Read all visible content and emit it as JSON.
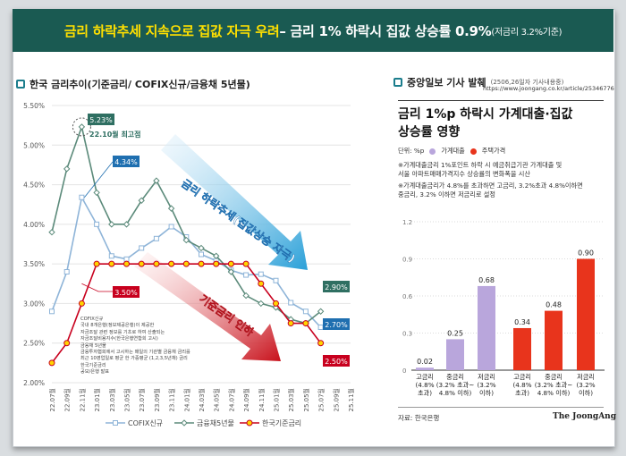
{
  "banner": {
    "part1": "금리 하락추세 지속으로 집값 자극 우려",
    "part2": " – 금리 1% 하락시 집값 상승률 0.9%",
    "part3": "(저금리 3.2%기준)"
  },
  "left": {
    "heading": "한국 금리추이(기준금리/ COFIX신규/금융채 5년물)",
    "source_note": [
      "COFIX신규",
      "국내 8개은행(정보제공은행)이 제공한",
      "자금조달 관련 정보를 기초로 하여 산출되는",
      "자금조달비용지수(한국은행연합회 고시)",
      "금융채 5년물",
      "금융투자협회에서 고시하는 매일의 기관별 금융채 금리를",
      "최근 10영업일로 평균 한 가중평균 (1,2,3,5년채) 금리",
      "한국기준금리",
      "공모/은행 발표"
    ]
  },
  "right": {
    "heading": "중앙일보 기사 발췌",
    "heading_sub": "(2506,26일자 기사내용중)",
    "url": "https://www.joongang.co.kr/article/25346776",
    "title_line1": "금리 1%p 하락시 가계대출·집값",
    "title_line2": "상승률 영향",
    "unit": "단위: %p",
    "legend_loan": "가계대출",
    "legend_house": "주택가격",
    "note1_line1": "※가계대출금리 1%포인트 하락 시 예금취급기관 가계대출 및",
    "note1_line2": "  서울 아파트매매가격지수 상승률의 변화폭을 시산",
    "note2_line1": "※가계대출금리가 4.8%를 초과하면 고금리, 3.2%초과 4.8%이하면",
    "note2_line2": "  중금리, 3.2% 이하면 저금리로 설정",
    "source": "자료: 한국은행",
    "brand": "The JoongAng"
  },
  "colors": {
    "banner_bg": "#1a5a52",
    "banner_highlight": "#ffe000",
    "cofix": "#8eb4d8",
    "bond": "#5b8a7a",
    "base": "#c8001e",
    "base_marker": "#ffd400",
    "loan": "#b9a6dc",
    "house": "#e8341c"
  },
  "chart_data": [
    {
      "type": "line",
      "title": "한국 금리추이(기준금리/ COFIX신규/금융채 5년물)",
      "x": [
        "22.07월",
        "22.09월",
        "22.11월",
        "23.01월",
        "23.03월",
        "23.05월",
        "23.07월",
        "23.09월",
        "23.11월",
        "24.01월",
        "24.03월",
        "24.05월",
        "24.07월",
        "24.09월",
        "24.11월",
        "25.01월",
        "25.03월",
        "25.05월",
        "25.07월",
        "25.09월",
        "25.11월"
      ],
      "ylim": [
        2.0,
        5.5
      ],
      "yticks": [
        "2.00%",
        "2.50%",
        "3.00%",
        "3.50%",
        "4.00%",
        "4.50%",
        "5.00%",
        "5.50%"
      ],
      "legend": [
        "COFIX신규",
        "금융채5년물",
        "한국기준금리"
      ],
      "series": [
        {
          "name": "COFIX신규",
          "values": [
            2.9,
            3.4,
            4.34,
            4.0,
            3.6,
            3.56,
            3.7,
            3.82,
            3.97,
            3.84,
            3.62,
            3.54,
            3.42,
            3.36,
            3.37,
            3.29,
            3.01,
            2.9,
            2.7,
            null,
            null
          ]
        },
        {
          "name": "금융채5년물",
          "values": [
            3.9,
            4.7,
            5.23,
            4.4,
            4.0,
            4.0,
            4.3,
            4.55,
            4.2,
            3.8,
            3.7,
            3.6,
            3.4,
            3.1,
            3.0,
            2.95,
            2.8,
            2.75,
            2.9,
            null,
            null
          ]
        },
        {
          "name": "한국기준금리",
          "values": [
            2.25,
            2.5,
            3.0,
            3.5,
            3.5,
            3.5,
            3.5,
            3.5,
            3.5,
            3.5,
            3.5,
            3.5,
            3.5,
            3.5,
            3.25,
            3.0,
            2.75,
            2.75,
            2.5,
            null,
            null
          ]
        }
      ],
      "annotations": [
        {
          "text": "5.23%",
          "note": "22.10월 최고점"
        },
        {
          "text": "4.34%"
        },
        {
          "text": "3.50%"
        },
        {
          "text": "2.90%"
        },
        {
          "text": "2.70%"
        },
        {
          "text": "2.50%"
        },
        {
          "text": "금리 하락추세(집값상승 자극)"
        },
        {
          "text": "기준금리 인하"
        }
      ]
    },
    {
      "type": "bar",
      "title": "금리 1%p 하락시 가계대출·집값 상승률 영향",
      "ylim": [
        0,
        1.2
      ],
      "yticks": [
        "0",
        "0.3",
        "0.6",
        "0.9",
        "1.2"
      ],
      "categories": [
        [
          "고금리",
          "(4.8%",
          "초과)"
        ],
        [
          "중금리",
          "(3.2% 초과~",
          "4.8% 이하)"
        ],
        [
          "저금리",
          "(3.2%",
          "이하)"
        ],
        [
          "고금리",
          "(4.8%",
          "초과)"
        ],
        [
          "중금리",
          "(3.2% 초과~",
          "4.8% 이하)"
        ],
        [
          "저금리",
          "(3.2%",
          "이하)"
        ]
      ],
      "series": [
        {
          "name": "가계대출",
          "values": [
            0.02,
            0.25,
            0.68,
            null,
            null,
            null
          ]
        },
        {
          "name": "주택가격",
          "values": [
            null,
            null,
            null,
            0.34,
            0.48,
            0.9
          ]
        }
      ],
      "value_labels": [
        "0.02",
        "0.25",
        "0.68",
        "0.34",
        "0.48",
        "0.90"
      ]
    }
  ]
}
